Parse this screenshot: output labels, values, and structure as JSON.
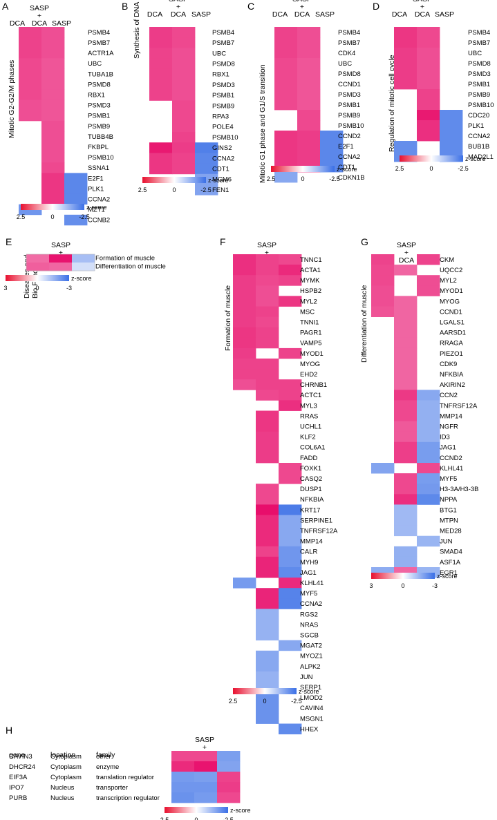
{
  "scale": {
    "colors": {
      "high": "#e8102f",
      "mid": "#ffffff",
      "low": "#3a6fe6"
    },
    "legend_title": "z-score"
  },
  "chart_data": [
    {
      "id": "A",
      "type": "heatmap",
      "letter": "A",
      "side_label": "Mitotic G2-G2/M phases",
      "columns": [
        "DCA",
        "SASP\n+\nDCA",
        "SASP"
      ],
      "rows": [
        "PSMB4",
        "PSMB7",
        "ACTR1A",
        "UBC",
        "TUBA1B",
        "PSMD8",
        "RBX1",
        "PSMD3",
        "PSMB1",
        "PSMB9",
        "TUBB4B",
        "FKBPL",
        "PSMB10",
        "SSNA1",
        "E2F1",
        "PLK1",
        "CCNA2",
        "MZT1",
        "CCNB2"
      ],
      "values": [
        [
          1.6,
          1.4,
          null
        ],
        [
          1.6,
          1.4,
          null
        ],
        [
          1.6,
          1.4,
          null
        ],
        [
          1.5,
          1.3,
          null
        ],
        [
          1.5,
          1.3,
          null
        ],
        [
          1.5,
          1.3,
          null
        ],
        [
          1.5,
          1.3,
          null
        ],
        [
          1.4,
          1.3,
          null
        ],
        [
          1.4,
          1.3,
          null
        ],
        [
          null,
          1.4,
          null
        ],
        [
          null,
          1.4,
          null
        ],
        [
          null,
          1.4,
          null
        ],
        [
          null,
          1.4,
          null
        ],
        [
          null,
          1.5,
          null
        ],
        [
          null,
          1.8,
          -1.8
        ],
        [
          null,
          1.8,
          -1.8
        ],
        [
          null,
          1.8,
          -1.8
        ],
        [
          -1.4,
          null,
          null
        ],
        [
          null,
          null,
          -1.6
        ]
      ],
      "zlim": [
        2.5,
        -2.5
      ],
      "ticks": [
        "2.5",
        "0",
        "-2.5"
      ]
    },
    {
      "id": "B",
      "type": "heatmap",
      "letter": "B",
      "side_label": "Synthesis of DNA",
      "columns": [
        "DCA",
        "SASP\n+\nDCA",
        "SASP"
      ],
      "rows": [
        "PSMB4",
        "PSMB7",
        "UBC",
        "PSMD8",
        "RBX1",
        "PSMD3",
        "PSMB1",
        "PSMB9",
        "RPA3",
        "POLE4",
        "PSMB10",
        "GINS2",
        "CCNA2",
        "CDT1",
        "MCM6",
        "FEN1"
      ],
      "values": [
        [
          1.7,
          1.5,
          null
        ],
        [
          1.7,
          1.5,
          null
        ],
        [
          1.6,
          1.4,
          null
        ],
        [
          1.6,
          1.4,
          null
        ],
        [
          1.6,
          1.4,
          null
        ],
        [
          1.6,
          1.4,
          null
        ],
        [
          1.6,
          1.4,
          null
        ],
        [
          null,
          1.5,
          null
        ],
        [
          null,
          1.5,
          null
        ],
        [
          null,
          1.5,
          null
        ],
        [
          null,
          1.6,
          null
        ],
        [
          2.3,
          1.7,
          -2.0
        ],
        [
          1.8,
          1.6,
          -1.8
        ],
        [
          1.8,
          1.6,
          -1.8
        ],
        [
          null,
          null,
          -1.1
        ],
        [
          null,
          null,
          -1.1
        ]
      ],
      "zlim": [
        2.5,
        -2.5
      ],
      "ticks": [
        "2.5",
        "0",
        "-2.5"
      ]
    },
    {
      "id": "C",
      "type": "heatmap",
      "letter": "C",
      "side_label": "Mitotic G1 phase and G1/S transition",
      "columns": [
        "DCA",
        "SASP\n+\nDCA",
        "SASP"
      ],
      "rows": [
        "PSMB4",
        "PSMB7",
        "CDK4",
        "UBC",
        "PSMD8",
        "CCND1",
        "PSMD3",
        "PSMB1",
        "PSMB9",
        "PSMB10",
        "CCND2",
        "E2F1",
        "CCNA2",
        "CDT1",
        "CDKN1B"
      ],
      "values": [
        [
          1.6,
          1.4,
          null
        ],
        [
          1.6,
          1.4,
          null
        ],
        [
          1.6,
          1.4,
          null
        ],
        [
          1.5,
          1.3,
          null
        ],
        [
          1.5,
          1.3,
          null
        ],
        [
          1.5,
          1.3,
          null
        ],
        [
          1.5,
          1.3,
          null
        ],
        [
          1.5,
          1.3,
          null
        ],
        [
          null,
          1.5,
          null
        ],
        [
          null,
          1.5,
          null
        ],
        [
          1.8,
          1.7,
          -1.8
        ],
        [
          1.8,
          1.7,
          -1.8
        ],
        [
          1.8,
          1.7,
          -1.8
        ],
        [
          1.8,
          1.7,
          -1.8
        ],
        [
          -1.0,
          null,
          null
        ]
      ],
      "zlim": [
        2.5,
        -2.5
      ],
      "ticks": [
        "2.5",
        "0",
        "-2.5"
      ]
    },
    {
      "id": "D",
      "type": "heatmap",
      "letter": "D",
      "side_label": "Regulation of mitotic cell cycle",
      "columns": [
        "DCA",
        "SASP\n+\nDCA",
        "SASP"
      ],
      "rows": [
        "PSMB4",
        "PSMB7",
        "UBC",
        "PSMD8",
        "PSMD3",
        "PSMB1",
        "PSMB9",
        "PSMB10",
        "CDC20",
        "PLK1",
        "CCNA2",
        "BUB1B",
        "MAD2L1"
      ],
      "values": [
        [
          1.8,
          1.5,
          null
        ],
        [
          1.8,
          1.5,
          null
        ],
        [
          1.7,
          1.4,
          null
        ],
        [
          1.7,
          1.4,
          null
        ],
        [
          1.7,
          1.4,
          null
        ],
        [
          1.7,
          1.4,
          null
        ],
        [
          null,
          1.6,
          null
        ],
        [
          null,
          1.6,
          null
        ],
        [
          null,
          2.3,
          -1.7
        ],
        [
          null,
          1.9,
          -1.7
        ],
        [
          null,
          1.9,
          -1.7
        ],
        [
          -1.6,
          null,
          -1.7
        ],
        [
          -1.6,
          null,
          -1.7
        ]
      ],
      "zlim": [
        2.5,
        -2.5
      ],
      "ticks": [
        "2.5",
        "0",
        "-2.5"
      ]
    },
    {
      "id": "E",
      "type": "heatmap",
      "letter": "E",
      "side_label": "Diseases and\nBio Functions",
      "columns": [
        "DCA",
        "SASP\n+\nDCA",
        "SASP"
      ],
      "rows": [
        "Formation of muscle",
        "Differentiation of muscle"
      ],
      "values": [
        [
          1.2,
          2.9,
          -0.7
        ],
        [
          1.4,
          1.3,
          -0.2
        ]
      ],
      "zlim": [
        3,
        -3
      ],
      "ticks": [
        "3",
        "0",
        "-3"
      ]
    },
    {
      "id": "F",
      "type": "heatmap",
      "letter": "F",
      "side_label": "Formation of muscle",
      "columns": [
        "DCA",
        "SASP\n+\nDCA",
        "SASP"
      ],
      "rows": [
        "TNNC1",
        "ACTA1",
        "MYMK",
        "HSPB2",
        "MYL2",
        "MSC",
        "TNNI1",
        "PAGR1",
        "VAMP5",
        "MYOD1",
        "MYOG",
        "EHD2",
        "CHRNB1",
        "ACTC1",
        "MYL3",
        "RRAS",
        "UCHL1",
        "KLF2",
        "COL6A1",
        "FADD",
        "FOXK1",
        "CASQ2",
        "DUSP1",
        "NFKBIA",
        "KRT17",
        "SERPINE1",
        "TNFRSF12A",
        "MMP14",
        "CALR",
        "MYH9",
        "JAG1",
        "KLHL41",
        "MYF5",
        "CCNA2",
        "RGS2",
        "NRAS",
        "SGCB",
        "MGAT2",
        "MYOZ1",
        "ALPK2",
        "JUN",
        "SERP1",
        "LMOD2",
        "CAVIN4",
        "MSGN1",
        "HHEX"
      ],
      "values": [
        [
          1.9,
          1.6,
          1.5
        ],
        [
          1.9,
          1.6,
          2.0
        ],
        [
          1.7,
          1.5,
          1.6
        ],
        [
          1.7,
          1.4,
          null
        ],
        [
          1.7,
          1.4,
          1.8
        ],
        [
          1.7,
          1.6,
          null
        ],
        [
          1.7,
          1.5,
          null
        ],
        [
          1.8,
          1.6,
          null
        ],
        [
          1.8,
          1.6,
          null
        ],
        [
          1.7,
          null,
          1.6
        ],
        [
          1.6,
          1.6,
          null
        ],
        [
          1.6,
          1.6,
          null
        ],
        [
          1.4,
          1.6,
          1.6
        ],
        [
          null,
          1.5,
          1.6
        ],
        [
          null,
          null,
          1.9
        ],
        [
          null,
          1.8,
          null
        ],
        [
          null,
          1.8,
          null
        ],
        [
          null,
          1.7,
          null
        ],
        [
          null,
          1.7,
          null
        ],
        [
          null,
          1.7,
          null
        ],
        [
          null,
          null,
          1.5
        ],
        [
          null,
          null,
          1.5
        ],
        [
          null,
          1.5,
          null
        ],
        [
          null,
          1.5,
          null
        ],
        [
          null,
          2.5,
          -2.1
        ],
        [
          null,
          2.0,
          -1.0
        ],
        [
          null,
          2.0,
          -1.0
        ],
        [
          null,
          2.0,
          -1.0
        ],
        [
          null,
          1.6,
          -1.4
        ],
        [
          null,
          2.1,
          -1.4
        ],
        [
          null,
          2.1,
          -1.7
        ],
        [
          -1.3,
          null,
          2.0
        ],
        [
          null,
          2.1,
          -1.9
        ],
        [
          null,
          2.1,
          -1.9
        ],
        [
          null,
          -0.8,
          null
        ],
        [
          null,
          -0.8,
          null
        ],
        [
          null,
          -0.8,
          null
        ],
        [
          null,
          null,
          -1.0
        ],
        [
          null,
          -1.0,
          null
        ],
        [
          null,
          -1.0,
          null
        ],
        [
          null,
          -0.8,
          null
        ],
        [
          null,
          -0.8,
          null
        ],
        [
          null,
          -1.5,
          null
        ],
        [
          null,
          -1.5,
          null
        ],
        [
          null,
          -1.5,
          null
        ],
        [
          null,
          null,
          -1.7
        ]
      ],
      "zlim": [
        2.5,
        -2.5
      ],
      "ticks": [
        "2.5",
        "0",
        "-2.5"
      ]
    },
    {
      "id": "G",
      "type": "heatmap",
      "letter": "G",
      "side_label": "Differentiation of muscle",
      "columns": [
        "DCA",
        "SASP\n+\nDCA",
        "SASP"
      ],
      "rows": [
        "CKM",
        "UQCC2",
        "MYL2",
        "MYOD1",
        "MYOG",
        "CCND1",
        "LGALS1",
        "AARSD1",
        "RRAGA",
        "PIEZO1",
        "CDK9",
        "NFKBIA",
        "AKIRIN2",
        "CCN2",
        "TNFRSF12A",
        "MMP14",
        "NGFR",
        "ID3",
        "JAG1",
        "CCND2",
        "KLHL41",
        "MYF5",
        "H3-3A/H3-3B",
        "NPPA",
        "BTG1",
        "MTPN",
        "MED28",
        "JUN",
        "SMAD4",
        "ASF1A",
        "EGR1"
      ],
      "values": [
        [
          1.9,
          null,
          1.9
        ],
        [
          1.8,
          1.3,
          null
        ],
        [
          1.8,
          null,
          1.7
        ],
        [
          1.7,
          null,
          1.7
        ],
        [
          1.7,
          1.3,
          null
        ],
        [
          1.6,
          1.3,
          null
        ],
        [
          null,
          1.3,
          null
        ],
        [
          null,
          1.3,
          null
        ],
        [
          null,
          1.3,
          null
        ],
        [
          null,
          1.3,
          null
        ],
        [
          null,
          1.3,
          null
        ],
        [
          null,
          1.3,
          null
        ],
        [
          null,
          1.3,
          null
        ],
        [
          null,
          2.1,
          -1.2
        ],
        [
          null,
          1.8,
          -1.0
        ],
        [
          null,
          1.8,
          -1.0
        ],
        [
          null,
          1.5,
          -1.0
        ],
        [
          null,
          1.5,
          -1.0
        ],
        [
          null,
          2.0,
          -1.5
        ],
        [
          null,
          2.0,
          -1.5
        ],
        [
          -1.3,
          null,
          1.8
        ],
        [
          null,
          1.8,
          -1.5
        ],
        [
          null,
          1.8,
          -1.6
        ],
        [
          null,
          2.3,
          -2.1
        ],
        [
          null,
          -0.8,
          null
        ],
        [
          null,
          -0.8,
          null
        ],
        [
          null,
          -0.8,
          null
        ],
        [
          null,
          null,
          -0.9
        ],
        [
          null,
          -1.0,
          null
        ],
        [
          null,
          -1.0,
          null
        ],
        [
          -1.1,
          1.3,
          -0.9
        ]
      ],
      "zlim": [
        3,
        -3
      ],
      "ticks": [
        "3",
        "0",
        "-3"
      ]
    },
    {
      "id": "H",
      "type": "heatmap",
      "letter": "H",
      "columns": [
        "DCA",
        "SASP\n+\nDCA",
        "SASP"
      ],
      "table_headers": [
        "gene",
        "location",
        "family"
      ],
      "table_rows": [
        [
          "CAVIN3",
          "Cytoplasm",
          "other"
        ],
        [
          "DHCR24",
          "Cytoplasm",
          "enzyme"
        ],
        [
          "EIF3A",
          "Cytoplasm",
          "translation regulator"
        ],
        [
          "IPO7",
          "Nucleus",
          "transporter"
        ],
        [
          "PURB",
          "Nucleus",
          "transcription regulator"
        ]
      ],
      "values": [
        [
          1.5,
          1.5,
          -1.2
        ],
        [
          2.0,
          2.4,
          -1.1
        ],
        [
          -1.3,
          -1.2,
          1.6
        ],
        [
          -1.4,
          -1.4,
          1.7
        ],
        [
          -1.5,
          -1.3,
          1.5
        ]
      ],
      "zlim": [
        2.5,
        -2.5
      ],
      "ticks": [
        "2.5",
        "0",
        "-2.5"
      ]
    }
  ]
}
